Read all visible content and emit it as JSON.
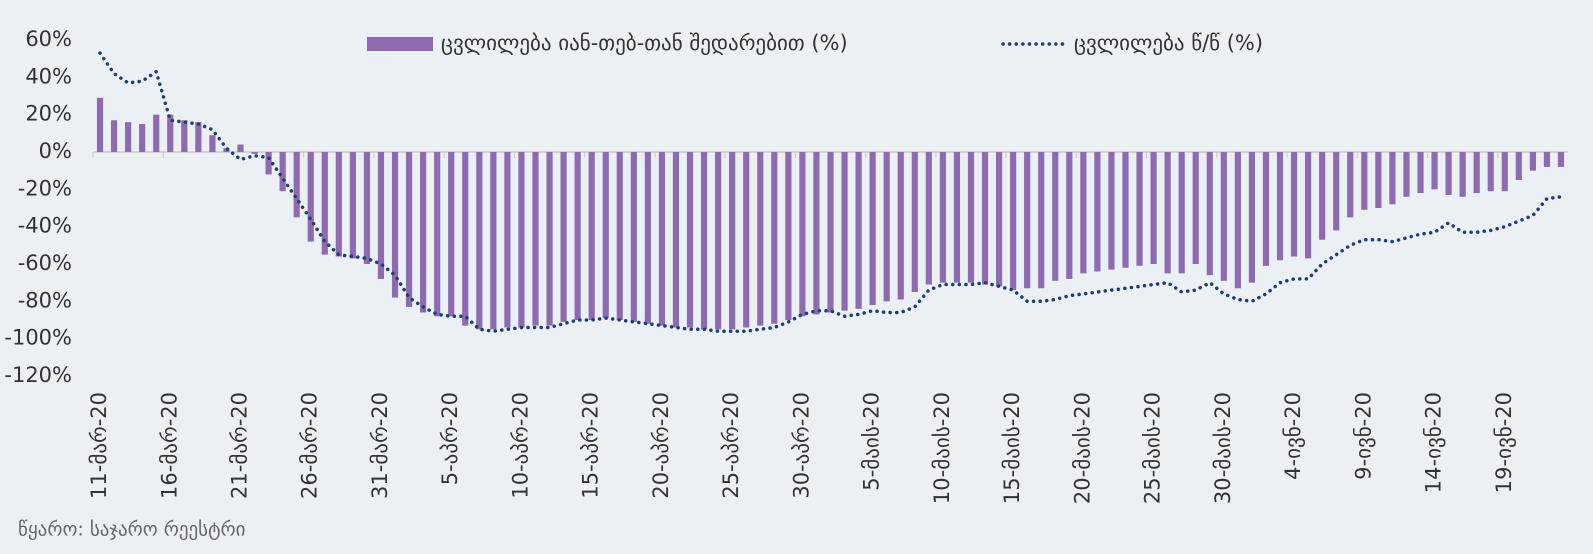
{
  "chart_data": {
    "type": "bar",
    "categories": [
      "11-მარ-20",
      null,
      null,
      null,
      null,
      "16-მარ-20",
      null,
      null,
      null,
      null,
      "21-მარ-20",
      null,
      null,
      null,
      null,
      "26-მარ-20",
      null,
      null,
      null,
      null,
      "31-მარ-20",
      null,
      null,
      null,
      null,
      "5-აპრ-20",
      null,
      null,
      null,
      null,
      "10-აპრ-20",
      null,
      null,
      null,
      null,
      "15-აპრ-20",
      null,
      null,
      null,
      null,
      "20-აპრ-20",
      null,
      null,
      null,
      null,
      "25-აპრ-20",
      null,
      null,
      null,
      null,
      "30-აპრ-20",
      null,
      null,
      null,
      null,
      "5-მაის-20",
      null,
      null,
      null,
      null,
      "10-მაის-20",
      null,
      null,
      null,
      null,
      "15-მაის-20",
      null,
      null,
      null,
      null,
      "20-მაის-20",
      null,
      null,
      null,
      null,
      "25-მაის-20",
      null,
      null,
      null,
      null,
      "30-მაის-20",
      null,
      null,
      null,
      null,
      "4-ივნ-20",
      null,
      null,
      null,
      null,
      "9-ივნ-20",
      null,
      null,
      null,
      null,
      "14-ივნ-20",
      null,
      null,
      null,
      null,
      "19-ივნ-20",
      null,
      null,
      null,
      null
    ],
    "series": [
      {
        "name": "ცვლილება იან-თებ-თან შედარებით (%)",
        "type": "bar",
        "color": "#8e6bb0",
        "values": [
          29,
          17,
          16,
          15,
          20,
          20,
          17,
          16,
          9,
          2,
          4,
          -1,
          -12,
          -21,
          -35,
          -48,
          -55,
          -56,
          -57,
          -60,
          -68,
          -78,
          -83,
          -86,
          -88,
          -88,
          -93,
          -95,
          -95,
          -94,
          -94,
          -93,
          -93,
          -91,
          -90,
          -90,
          -89,
          -90,
          -91,
          -92,
          -93,
          -94,
          -94,
          -95,
          -95,
          -95,
          -94,
          -93,
          -92,
          -90,
          -88,
          -87,
          -86,
          -85,
          -84,
          -82,
          -80,
          -79,
          -75,
          -71,
          -70,
          -70,
          -70,
          -71,
          -72,
          -74,
          -73,
          -73,
          -69,
          -68,
          -65,
          -64,
          -63,
          -62,
          -61,
          -60,
          -65,
          -65,
          -60,
          -66,
          -69,
          -73,
          -70,
          -61,
          -58,
          -56,
          -57,
          -47,
          -42,
          -35,
          -31,
          -30,
          -28,
          -24,
          -22,
          -20,
          -23,
          -24,
          -22,
          -21,
          -21,
          -15,
          -10,
          -8,
          -8
        ]
      },
      {
        "name": "ცვლილება წ/წ (%)",
        "type": "line",
        "color": "#1f3f73",
        "values": [
          53,
          42,
          37,
          38,
          43,
          17,
          16,
          15,
          12,
          2,
          -4,
          -2,
          -3,
          -14,
          -25,
          -36,
          -48,
          -55,
          -56,
          -57,
          -60,
          -66,
          -78,
          -83,
          -87,
          -88,
          -88,
          -95,
          -96,
          -95,
          -94,
          -94,
          -94,
          -92,
          -90,
          -90,
          -89,
          -90,
          -91,
          -92,
          -93,
          -94,
          -95,
          -95,
          -96,
          -96,
          -96,
          -95,
          -94,
          -91,
          -87,
          -85,
          -85,
          -88,
          -87,
          -85,
          -86,
          -86,
          -83,
          -74,
          -71,
          -71,
          -71,
          -70,
          -72,
          -74,
          -80,
          -80,
          -79,
          -77,
          -76,
          -75,
          -74,
          -73,
          -72,
          -71,
          -70,
          -75,
          -74,
          -70,
          -76,
          -79,
          -80,
          -76,
          -70,
          -68,
          -68,
          -60,
          -55,
          -50,
          -47,
          -47,
          -48,
          -46,
          -44,
          -43,
          -38,
          -43,
          -43,
          -42,
          -40,
          -37,
          -34,
          -25,
          -24
        ]
      }
    ],
    "ylim": [
      -120,
      60
    ],
    "yticks": [
      {
        "value": -120,
        "label": "-120%"
      },
      {
        "value": -100,
        "label": "-100%"
      },
      {
        "value": -80,
        "label": "-80%"
      },
      {
        "value": -60,
        "label": "-60%"
      },
      {
        "value": -40,
        "label": "-40%"
      },
      {
        "value": -20,
        "label": "-20%"
      },
      {
        "value": 0,
        "label": "0%"
      },
      {
        "value": 20,
        "label": "20%"
      },
      {
        "value": 40,
        "label": "40%"
      },
      {
        "value": 60,
        "label": "60%"
      }
    ],
    "grid": false,
    "legend": "top",
    "source": "წყარო: საჯარო რეესტრი"
  }
}
